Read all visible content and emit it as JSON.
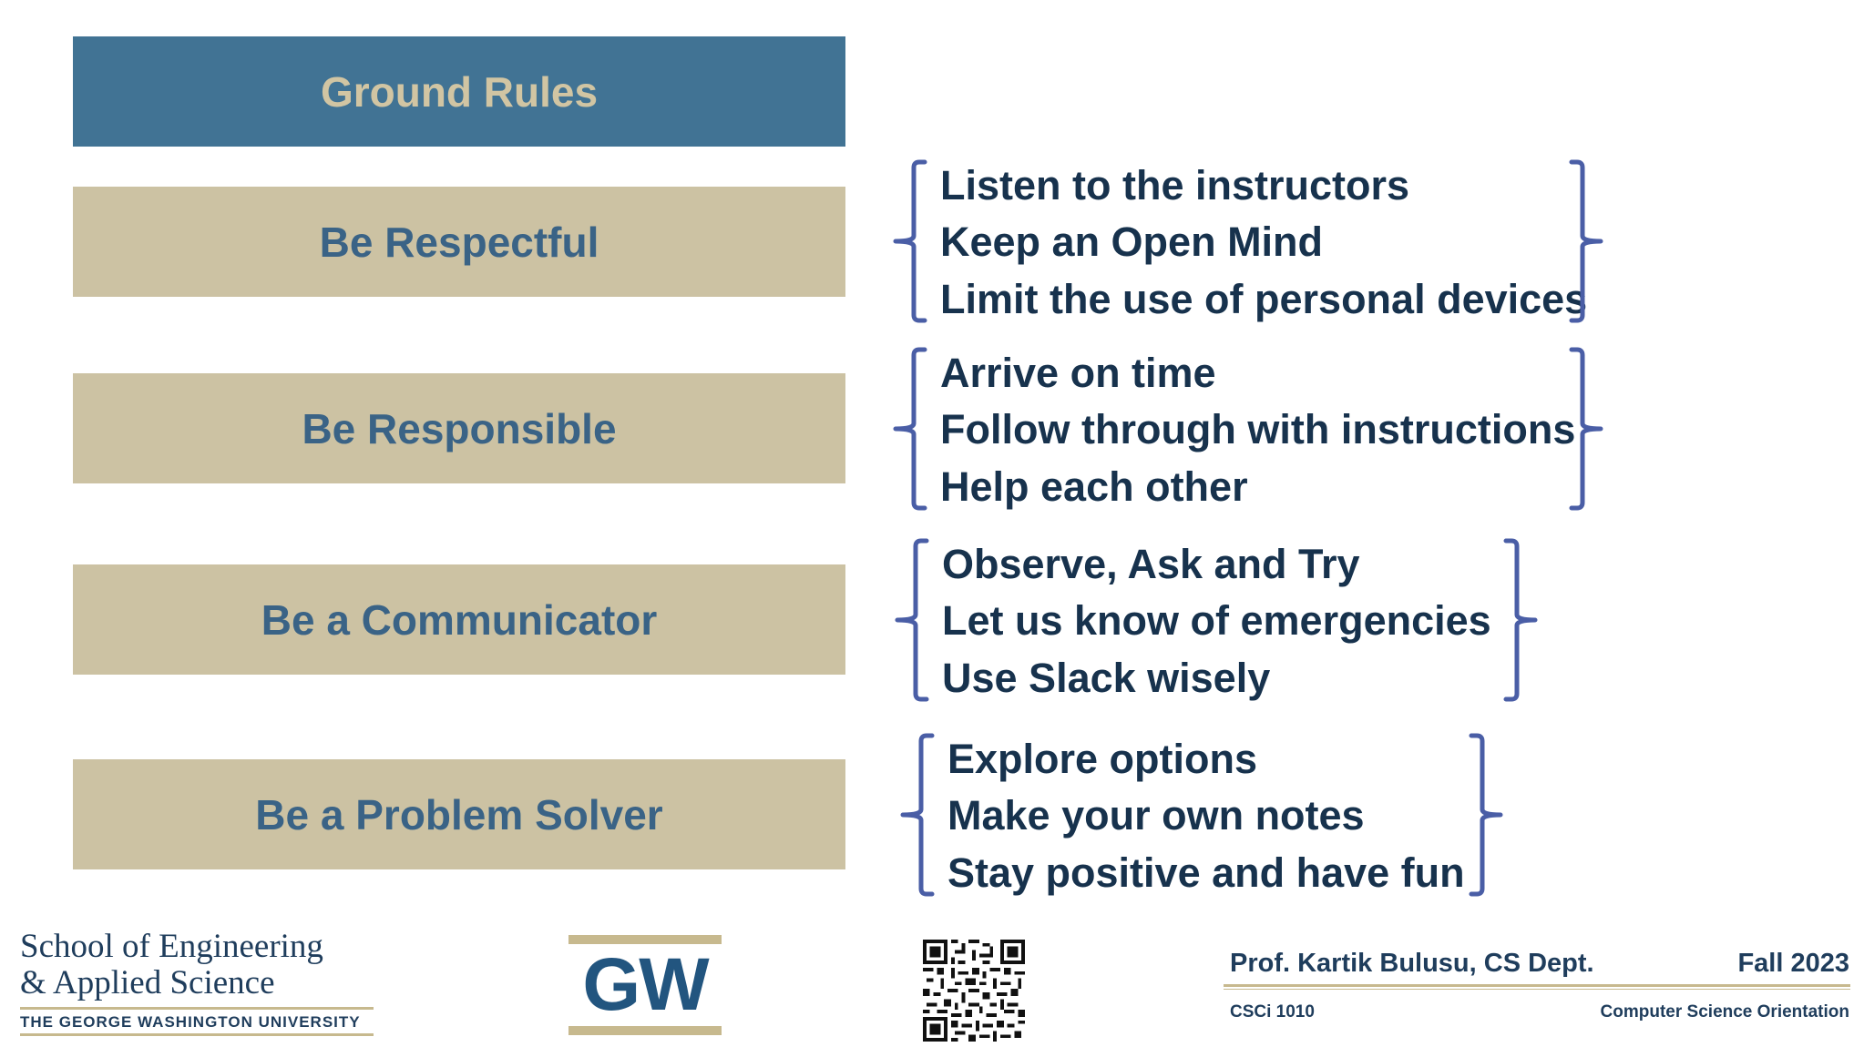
{
  "title": "Ground Rules",
  "rules": [
    {
      "label": "Be Respectful",
      "items": [
        "Listen to the instructors",
        "Keep an Open Mind",
        "Limit the use of personal devices"
      ]
    },
    {
      "label": "Be Responsible",
      "items": [
        "Arrive on time",
        "Follow through with instructions",
        "Help each other"
      ]
    },
    {
      "label": "Be a Communicator",
      "items": [
        "Observe, Ask and Try",
        "Let us know of emergencies",
        "Use Slack wisely"
      ]
    },
    {
      "label": "Be a Problem Solver",
      "items": [
        "Explore options",
        "Make your own notes",
        "Stay positive and have fun"
      ]
    }
  ],
  "footer": {
    "school_line1": "School of Engineering",
    "school_line2": "& Applied Science",
    "university": "THE GEORGE WASHINGTON UNIVERSITY",
    "gw_logo_text": "GW",
    "instructor": "Prof. Kartik Bulusu, CS Dept.",
    "term": "Fall 2023",
    "course_code": "CSCi 1010",
    "course_name": "Computer Science Orientation"
  },
  "colors": {
    "header_bar": "#417394",
    "header_text": "#d1c5a3",
    "rule_bar": "#ccc2a3",
    "rule_text": "#3a6386",
    "item_text": "#17324d",
    "brace": "#4a5ea6",
    "gold": "#c7b98e",
    "navy": "#1f3d5c"
  }
}
